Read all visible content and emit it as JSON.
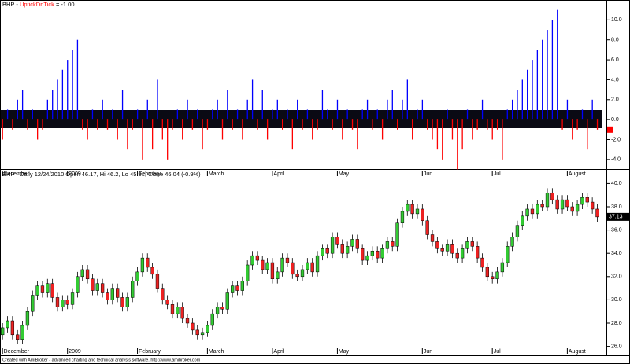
{
  "chart_data": [
    {
      "type": "bar",
      "title": "BHP -",
      "series": [
        {
          "name": "UptickDnTick",
          "color": "#0000ff",
          "negative_color": "#ff0000",
          "values": [
            -2,
            1,
            -1,
            2,
            3,
            -1,
            1,
            -2,
            -1,
            2,
            3,
            4,
            5,
            6,
            7,
            8,
            -1,
            -2,
            1,
            -1,
            2,
            -1,
            1,
            -2,
            3,
            -3,
            -1,
            1,
            -4,
            2,
            -3,
            4,
            -2,
            -4,
            -1,
            1,
            -2,
            2,
            -1,
            1,
            -3,
            -1,
            1,
            2,
            -2,
            3,
            -1,
            1,
            -2,
            2,
            4,
            -1,
            3,
            -2,
            1,
            2,
            -1,
            1,
            -3,
            2,
            -1,
            1,
            -2,
            -1,
            3,
            1,
            -1,
            2,
            -2,
            1,
            -1,
            -3,
            1,
            2,
            -1,
            1,
            -2,
            2,
            3,
            -1,
            2,
            4,
            -2,
            1,
            2,
            -1,
            -2,
            -3,
            -4,
            1,
            -2,
            -5,
            -3,
            1,
            -2,
            -1,
            2,
            -1,
            -2,
            -1,
            -4,
            1,
            2,
            3,
            4,
            5,
            6,
            7,
            8,
            9,
            10,
            11,
            -1,
            2,
            -2,
            -1,
            1,
            -3,
            2,
            -1
          ]
        }
      ],
      "last_value": {
        "value": -1,
        "label": "= -1.00"
      },
      "last_color": "#ff0000",
      "xlim": [
        -0.5,
        120.5
      ],
      "xticks": [
        {
          "value": 0,
          "label": "December"
        },
        {
          "value": 13,
          "label": "2009"
        },
        {
          "value": 27,
          "label": "February"
        },
        {
          "value": 41,
          "label": "March"
        },
        {
          "value": 54,
          "label": "April"
        },
        {
          "value": 67,
          "label": "May"
        },
        {
          "value": 84,
          "label": "Jun"
        },
        {
          "value": 98,
          "label": "Jul"
        },
        {
          "value": 113,
          "label": "August"
        }
      ],
      "ylim": [
        -4.8,
        12
      ],
      "yticks": [
        {
          "value": -4,
          "label": "-4.0"
        },
        {
          "value": -2,
          "label": "-2.0"
        },
        {
          "value": 0,
          "label": "0.0"
        },
        {
          "value": 2,
          "label": "2.0"
        },
        {
          "value": 4,
          "label": "4.0"
        },
        {
          "value": 6,
          "label": "6.0"
        },
        {
          "value": 8,
          "label": "8.0"
        },
        {
          "value": 10,
          "label": "10.0"
        }
      ]
    },
    {
      "type": "candlestick",
      "title": "BHP - Daily 12/24/2010 Open 46.17, Hi 46.2, Lo 45.91, Close 46.04 (-0.9%)",
      "up_color": "#33cc33",
      "down_color": "#ee2222",
      "open": [
        27.0,
        27.6,
        28.2,
        27.0,
        26.6,
        27.8,
        29.0,
        30.4,
        31.2,
        30.6,
        31.4,
        30.2,
        29.4,
        30.0,
        29.6,
        30.6,
        32.0,
        32.6,
        31.8,
        30.8,
        31.4,
        30.6,
        30.0,
        31.0,
        30.2,
        29.4,
        30.2,
        31.6,
        32.4,
        33.6,
        32.8,
        32.2,
        31.0,
        30.0,
        29.6,
        28.8,
        29.4,
        28.4,
        28.0,
        27.4,
        27.0,
        27.2,
        27.8,
        28.8,
        29.4,
        29.2,
        30.6,
        31.2,
        30.8,
        31.6,
        33.0,
        33.8,
        33.4,
        32.6,
        33.2,
        31.8,
        32.4,
        33.6,
        33.2,
        32.2,
        32.0,
        32.6,
        33.2,
        32.4,
        33.8,
        34.4,
        34.0,
        35.4,
        34.8,
        34.0,
        34.6,
        35.2,
        34.4,
        33.4,
        33.8,
        34.2,
        33.6,
        34.4,
        35.0,
        34.6,
        36.6,
        37.6,
        38.2,
        37.4,
        37.8,
        36.8,
        35.6,
        35.0,
        34.4,
        34.2,
        34.8,
        34.0,
        33.6,
        34.4,
        35.0,
        34.6,
        33.6,
        32.8,
        32.0,
        31.8,
        32.4,
        33.2,
        34.6,
        35.4,
        36.4,
        37.2,
        37.8,
        37.4,
        38.2,
        38.0,
        39.2,
        38.6,
        37.8,
        38.6,
        38.0,
        37.6,
        38.2,
        38.8,
        38.4,
        37.8
      ],
      "high": [
        28.0,
        28.6,
        28.6,
        27.4,
        28.2,
        29.4,
        30.8,
        31.6,
        31.6,
        31.8,
        31.8,
        30.6,
        30.4,
        30.4,
        31.0,
        32.4,
        33.0,
        33.0,
        32.2,
        31.8,
        31.8,
        31.0,
        31.4,
        31.4,
        30.6,
        30.6,
        32.0,
        32.8,
        34.0,
        34.0,
        33.2,
        32.6,
        31.4,
        30.4,
        30.0,
        29.8,
        29.8,
        28.8,
        28.4,
        27.8,
        27.6,
        28.2,
        29.2,
        29.8,
        29.8,
        31.0,
        31.6,
        31.6,
        32.0,
        33.4,
        34.2,
        34.2,
        33.8,
        33.6,
        33.6,
        32.8,
        34.0,
        34.0,
        33.6,
        32.6,
        33.0,
        33.6,
        33.6,
        34.2,
        34.8,
        34.8,
        35.8,
        35.8,
        35.2,
        35.0,
        35.6,
        35.6,
        34.8,
        34.2,
        34.6,
        34.6,
        34.8,
        35.4,
        35.4,
        37.0,
        38.0,
        38.6,
        38.6,
        38.2,
        38.2,
        37.2,
        36.0,
        35.4,
        34.8,
        35.2,
        35.2,
        34.4,
        34.8,
        35.4,
        35.4,
        35.0,
        34.0,
        33.2,
        32.4,
        32.8,
        33.6,
        35.0,
        35.8,
        36.8,
        37.6,
        38.2,
        38.2,
        38.6,
        38.6,
        39.6,
        39.6,
        39.0,
        39.0,
        39.0,
        38.4,
        38.6,
        39.2,
        39.2,
        38.8,
        38.2
      ],
      "low": [
        26.6,
        27.2,
        26.6,
        26.2,
        26.2,
        27.4,
        28.6,
        30.0,
        30.2,
        30.2,
        29.8,
        29.0,
        29.0,
        29.2,
        29.2,
        30.2,
        31.6,
        31.4,
        30.4,
        30.4,
        30.2,
        29.6,
        29.6,
        29.8,
        29.0,
        29.0,
        29.8,
        31.2,
        32.0,
        32.4,
        31.8,
        30.6,
        29.6,
        29.2,
        28.4,
        28.4,
        28.0,
        27.6,
        27.0,
        26.6,
        26.6,
        26.8,
        27.4,
        28.4,
        28.8,
        28.8,
        30.2,
        30.4,
        30.4,
        31.2,
        32.6,
        33.0,
        32.2,
        32.2,
        31.4,
        31.4,
        32.0,
        32.8,
        31.8,
        31.6,
        31.6,
        32.2,
        32.0,
        32.0,
        33.4,
        33.6,
        33.6,
        34.4,
        33.6,
        33.6,
        34.2,
        34.0,
        33.0,
        33.0,
        33.4,
        33.2,
        33.2,
        34.0,
        34.2,
        34.2,
        36.2,
        37.2,
        37.0,
        37.0,
        36.4,
        35.2,
        34.6,
        34.0,
        33.8,
        33.8,
        33.6,
        33.2,
        33.2,
        34.0,
        34.2,
        33.2,
        32.4,
        31.6,
        31.4,
        31.4,
        32.0,
        32.8,
        34.2,
        35.0,
        36.0,
        36.8,
        37.0,
        37.0,
        37.6,
        37.6,
        38.2,
        37.4,
        37.4,
        37.6,
        37.2,
        37.2,
        37.8,
        38.0,
        37.4,
        36.7
      ],
      "close": [
        27.6,
        28.2,
        27.0,
        26.6,
        27.8,
        29.0,
        30.4,
        31.2,
        30.6,
        31.4,
        30.2,
        29.4,
        30.0,
        29.6,
        30.6,
        32.0,
        32.6,
        31.8,
        30.8,
        31.4,
        30.6,
        30.0,
        31.0,
        30.2,
        29.4,
        30.2,
        31.6,
        32.4,
        33.6,
        32.8,
        32.2,
        31.0,
        30.0,
        29.6,
        28.8,
        29.4,
        28.4,
        28.0,
        27.4,
        27.0,
        27.2,
        27.8,
        28.8,
        29.4,
        29.2,
        30.6,
        31.2,
        30.8,
        31.6,
        33.0,
        33.8,
        33.4,
        32.6,
        33.2,
        31.8,
        32.4,
        33.6,
        33.2,
        32.2,
        32.0,
        32.6,
        33.2,
        32.4,
        33.8,
        34.4,
        34.0,
        35.4,
        34.8,
        34.0,
        34.6,
        35.2,
        34.4,
        33.4,
        33.8,
        34.2,
        33.6,
        34.4,
        35.0,
        34.6,
        36.6,
        37.6,
        38.2,
        37.4,
        37.8,
        36.8,
        35.6,
        35.0,
        34.4,
        34.2,
        34.8,
        34.0,
        33.6,
        34.4,
        35.0,
        34.6,
        33.6,
        32.8,
        32.0,
        31.8,
        32.4,
        33.2,
        34.6,
        35.4,
        36.4,
        37.2,
        37.8,
        37.4,
        38.2,
        38.0,
        39.2,
        38.6,
        37.8,
        38.6,
        38.0,
        37.6,
        38.2,
        38.8,
        38.4,
        37.8,
        37.13
      ],
      "xlim": [
        -0.5,
        120.5
      ],
      "xticks": [
        {
          "value": 0,
          "label": "December"
        },
        {
          "value": 13,
          "label": "2009"
        },
        {
          "value": 27,
          "label": "February"
        },
        {
          "value": 41,
          "label": "March"
        },
        {
          "value": 54,
          "label": "April"
        },
        {
          "value": 67,
          "label": "May"
        },
        {
          "value": 84,
          "label": "Jun"
        },
        {
          "value": 98,
          "label": "Jul"
        },
        {
          "value": 113,
          "label": "August"
        }
      ],
      "ylim": [
        25.5,
        40.5
      ],
      "yticks": [
        {
          "value": 26,
          "label": "26.0"
        },
        {
          "value": 28,
          "label": "28.0"
        },
        {
          "value": 30,
          "label": "30.0"
        },
        {
          "value": 32,
          "label": "32.0"
        },
        {
          "value": 34,
          "label": "34.0"
        },
        {
          "value": 36,
          "label": "36.0"
        },
        {
          "value": 38,
          "label": "38.0"
        },
        {
          "value": 40,
          "label": "40.0"
        }
      ]
    }
  ],
  "footer": "Created with AmiBroker - advanced charting and technical analysis software. http://www.amibroker.com"
}
